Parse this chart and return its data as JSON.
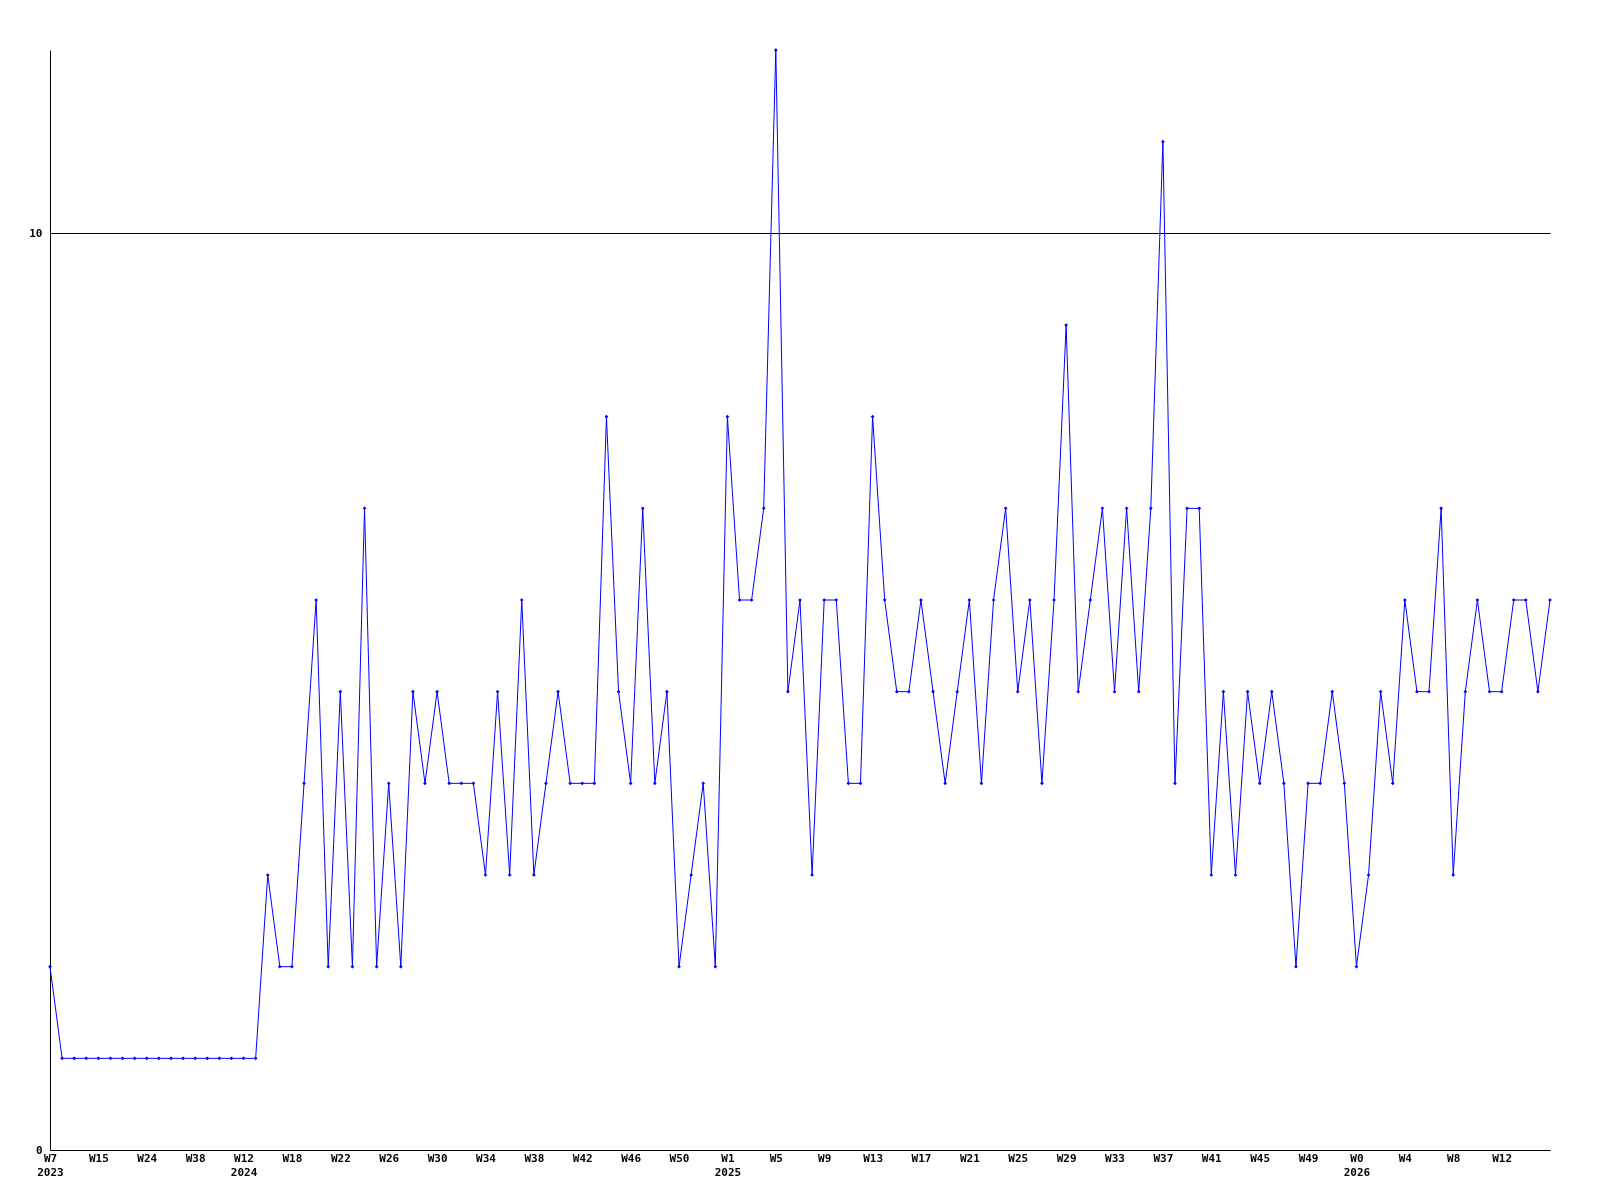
{
  "chart_data": {
    "type": "line",
    "categories": [
      "W7\n2023",
      null,
      null,
      null,
      "W15",
      null,
      null,
      null,
      "W24",
      null,
      null,
      null,
      "W38",
      null,
      null,
      null,
      "W12\n2024",
      null,
      null,
      null,
      "W18",
      null,
      null,
      null,
      "W22",
      null,
      null,
      null,
      "W26",
      null,
      null,
      null,
      "W30",
      null,
      null,
      null,
      "W34",
      null,
      null,
      null,
      "W38",
      null,
      null,
      null,
      "W42",
      null,
      null,
      null,
      "W46",
      null,
      null,
      null,
      "W50",
      null,
      null,
      null,
      "W1\n2025",
      null,
      null,
      null,
      "W5",
      null,
      null,
      null,
      "W9",
      null,
      null,
      null,
      "W13",
      null,
      null,
      null,
      "W17",
      null,
      null,
      null,
      "W21",
      null,
      null,
      null,
      "W25",
      null,
      null,
      null,
      "W29",
      null,
      null,
      null,
      "W33",
      null,
      null,
      null,
      "W37",
      null,
      null,
      null,
      "W41",
      null,
      null,
      null,
      "W45",
      null,
      null,
      null,
      "W49",
      null,
      null,
      null,
      "W0\n2026",
      null,
      null,
      null,
      "W4",
      null,
      null,
      null,
      "W8",
      null,
      null,
      null,
      "W12",
      null,
      null,
      null,
      null
    ],
    "series": [
      {
        "color": "#0000ff",
        "values": [
          2,
          1,
          1,
          1,
          1,
          1,
          1,
          1,
          1,
          1,
          1,
          1,
          1,
          1,
          1,
          1,
          1,
          1,
          3,
          2,
          2,
          4,
          6,
          2,
          5,
          2,
          7,
          2,
          4,
          2,
          5,
          4,
          5,
          4,
          4,
          4,
          3,
          5,
          3,
          6,
          3,
          4,
          5,
          4,
          4,
          4,
          8,
          5,
          4,
          7,
          4,
          5,
          2,
          3,
          4,
          2,
          8,
          6,
          6,
          7,
          12,
          5,
          6,
          3,
          6,
          6,
          4,
          4,
          8,
          6,
          5,
          5,
          6,
          5,
          4,
          5,
          6,
          4,
          6,
          7,
          5,
          6,
          4,
          6,
          9,
          5,
          6,
          7,
          5,
          7,
          5,
          7,
          11,
          4,
          7,
          7,
          3,
          5,
          3,
          5,
          4,
          5,
          4,
          2,
          4,
          4,
          5,
          4,
          2,
          3,
          5,
          4,
          6,
          5,
          5,
          7,
          3,
          5,
          6,
          5,
          5,
          6,
          6,
          5,
          6
        ]
      }
    ],
    "ylim": [
      0,
      12
    ],
    "yticks": [
      0,
      10
    ],
    "grid": "y",
    "legend": false,
    "marker": "diamond",
    "line_style": "solid"
  }
}
